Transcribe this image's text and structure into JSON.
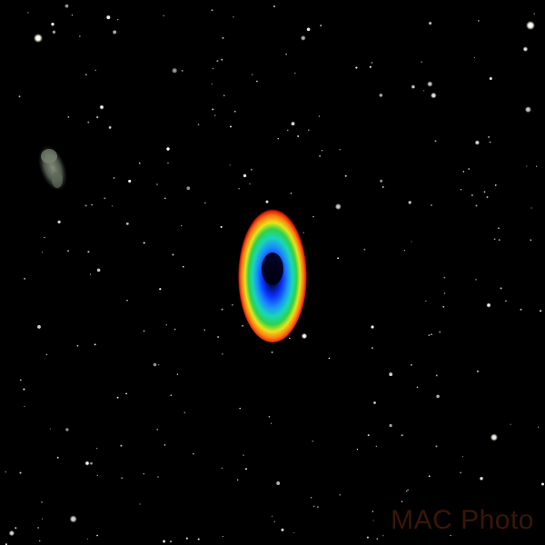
{
  "image": {
    "subject": "ring-nebula",
    "background_color": "#000000"
  },
  "nebula": {
    "colors": {
      "core": "#000010",
      "inner": "#0a2cff",
      "mid": "#1a8cff",
      "teal": "#19d7b8",
      "green": "#2fd24a",
      "yellow": "#e8e41a",
      "orange": "#ff7a12",
      "rim": "#d81c08"
    }
  },
  "galaxy": {
    "color": "#6b7a66"
  },
  "watermark": {
    "text": "MAC Photo",
    "color": "#3a1608"
  }
}
